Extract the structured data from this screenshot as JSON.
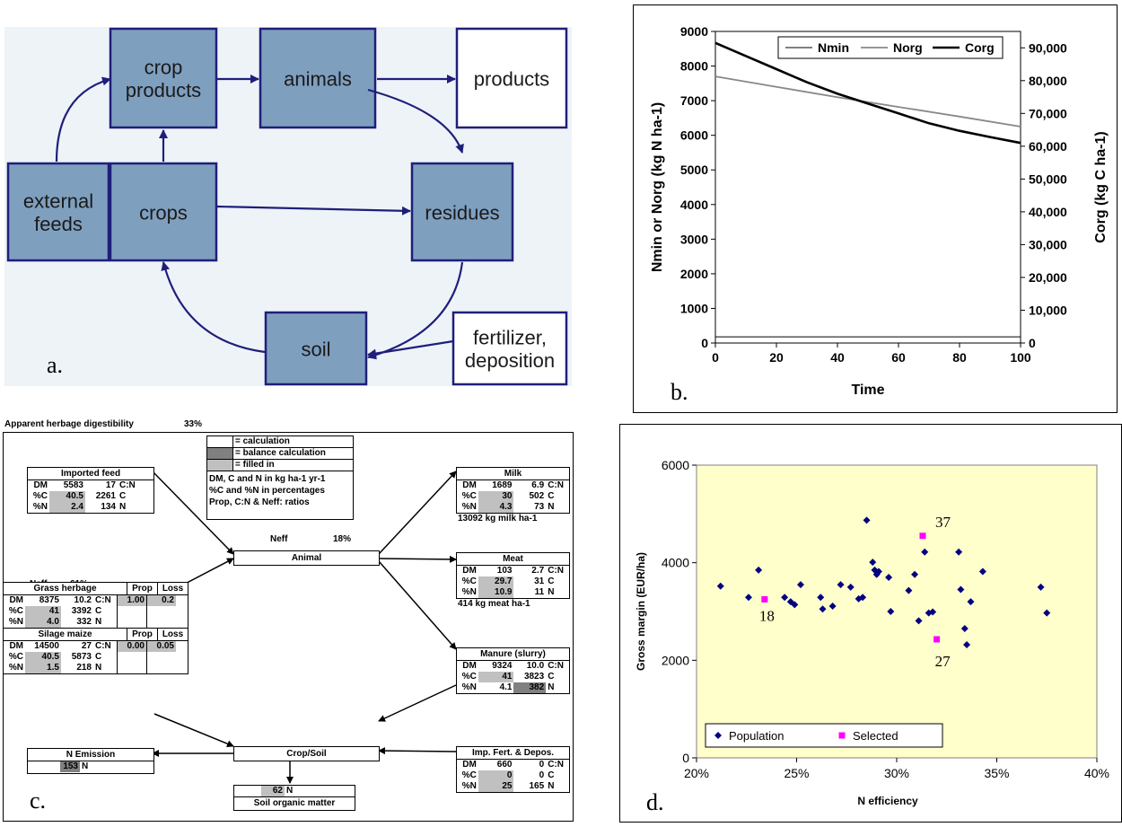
{
  "panel_a": {
    "label": "a.",
    "nodes": {
      "crop_products": [
        "crop",
        "products"
      ],
      "animals": [
        "animals"
      ],
      "products": [
        "products"
      ],
      "external_feeds": [
        "external",
        "feeds"
      ],
      "crops": [
        "crops"
      ],
      "residues": [
        "residues"
      ],
      "soil": [
        "soil"
      ],
      "fertilizer": [
        "fertilizer,",
        "deposition"
      ]
    }
  },
  "panel_b": {
    "label": "b.",
    "chart_data": {
      "type": "line",
      "xlabel": "Time",
      "ylabel_left": "Nmin or Norg (kg N ha-1)",
      "ylabel_right": "Corg (kg C ha-1)",
      "xlim": [
        0,
        100
      ],
      "ylim_left": [
        0,
        9000
      ],
      "ylim_right": [
        0,
        95000
      ],
      "x_ticks": [
        "0",
        "20",
        "40",
        "60",
        "80",
        "100"
      ],
      "y_ticks_left": [
        "0",
        "1000",
        "2000",
        "3000",
        "4000",
        "5000",
        "6000",
        "7000",
        "8000",
        "9000"
      ],
      "y_ticks_right": [
        "0",
        "10,000",
        "20,000",
        "30,000",
        "40,000",
        "50,000",
        "60,000",
        "70,000",
        "80,000",
        "90,000"
      ],
      "legend_position": "top-right",
      "series": [
        {
          "name": "Nmin",
          "axis": "left",
          "color": "#000000",
          "x": [
            0,
            20,
            40,
            60,
            80,
            100
          ],
          "y": [
            180,
            180,
            180,
            180,
            180,
            180
          ]
        },
        {
          "name": "Norg",
          "axis": "left",
          "color": "#888888",
          "x": [
            0,
            20,
            40,
            60,
            80,
            100
          ],
          "y": [
            7700,
            7400,
            7100,
            6820,
            6540,
            6250
          ]
        },
        {
          "name": "Corg",
          "axis": "right",
          "color": "#000000",
          "x": [
            0,
            10,
            20,
            30,
            40,
            50,
            60,
            70,
            80,
            90,
            100
          ],
          "y": [
            91500,
            87500,
            83500,
            79500,
            76000,
            73000,
            70000,
            67000,
            64700,
            62800,
            61000
          ]
        }
      ]
    }
  },
  "panel_c": {
    "label": "c.",
    "header_text": "Apparent herbage digestibility",
    "header_value": "33%",
    "legend": {
      "calc": "= calculation",
      "balance": "= balance calculation",
      "filled": "= filled in",
      "note1": "DM, C and N in kg ha-1 yr-1",
      "note2": "%C and %N in percentages",
      "note3": "Prop, C:N & Neff: ratios"
    },
    "imported_feed": {
      "title": "Imported feed",
      "rows": [
        [
          "DM",
          "5583",
          "17",
          "C:N"
        ],
        [
          "%C",
          "40.5",
          "2261",
          "C"
        ],
        [
          "%N",
          "2.4",
          "134",
          "N"
        ]
      ]
    },
    "milk": {
      "title": "Milk",
      "rows": [
        [
          "DM",
          "1689",
          "6.9",
          "C:N"
        ],
        [
          "%C",
          "30",
          "502",
          "C"
        ],
        [
          "%N",
          "4.3",
          "73",
          "N"
        ]
      ],
      "note": "13092 kg milk ha-1"
    },
    "meat": {
      "title": "Meat",
      "rows": [
        [
          "DM",
          "103",
          "2.7",
          "C:N"
        ],
        [
          "%C",
          "29.7",
          "31",
          "C"
        ],
        [
          "%N",
          "10.9",
          "11",
          "N"
        ]
      ],
      "note": "414 kg meat ha-1"
    },
    "manure": {
      "title": "Manure (slurry)",
      "rows": [
        [
          "DM",
          "9324",
          "10.0",
          "C:N"
        ],
        [
          "%C",
          "41",
          "3823",
          "C"
        ],
        [
          "%N",
          "4.1",
          "382",
          "N"
        ]
      ]
    },
    "imp_fert": {
      "title": "Imp. Fert. & Depos.",
      "rows": [
        [
          "DM",
          "660",
          "0",
          "C:N"
        ],
        [
          "%C",
          "0",
          "0",
          "C"
        ],
        [
          "%N",
          "25",
          "165",
          "N"
        ]
      ]
    },
    "grass": {
      "title": "Grass herbage",
      "rows": [
        [
          "DM",
          "8375",
          "10.2",
          "C:N"
        ],
        [
          "%C",
          "41",
          "3392",
          "C"
        ],
        [
          "%N",
          "4.0",
          "332",
          "N"
        ]
      ],
      "prop_label": "Prop",
      "loss_label": "Loss",
      "prop": "1.00",
      "loss": "0.2"
    },
    "maize": {
      "title": "Silage maize",
      "rows": [
        [
          "DM",
          "14500",
          "27",
          "C:N"
        ],
        [
          "%C",
          "40.5",
          "5873",
          "C"
        ],
        [
          "%N",
          "1.5",
          "218",
          "N"
        ]
      ],
      "prop_label": "Prop",
      "loss_label": "Loss",
      "prop": "0.00",
      "loss": "0.05"
    },
    "animal": "Animal",
    "crop_soil": "Crop/Soil",
    "neff_animal_label": "Neff",
    "neff_animal_value": "18%",
    "neff_crop_label": "Neff",
    "neff_crop_value": "61%",
    "n_emission": {
      "title": "N Emission",
      "value": "153",
      "unit": "N"
    },
    "som": {
      "title": "Soil organic matter",
      "value": "62",
      "unit": "N"
    }
  },
  "panel_d": {
    "label": "d.",
    "chart_data": {
      "type": "scatter",
      "xlabel": "N efficiency",
      "ylabel": "Gross margin (EUR/ha)",
      "xlim": [
        0.2,
        0.4
      ],
      "ylim": [
        0,
        6000
      ],
      "x_ticks": [
        "20%",
        "25%",
        "30%",
        "35%",
        "40%"
      ],
      "y_ticks": [
        "0",
        "2000",
        "4000",
        "6000"
      ],
      "legend_position": "bottom-left",
      "series": [
        {
          "name": "Population",
          "color": "#000080",
          "x": [
            0.212,
            0.226,
            0.231,
            0.244,
            0.247,
            0.249,
            0.252,
            0.262,
            0.263,
            0.268,
            0.272,
            0.277,
            0.281,
            0.283,
            0.285,
            0.288,
            0.289,
            0.29,
            0.291,
            0.296,
            0.297,
            0.306,
            0.309,
            0.311,
            0.314,
            0.316,
            0.318,
            0.331,
            0.332,
            0.334,
            0.335,
            0.337,
            0.343,
            0.372,
            0.375
          ],
          "y": [
            3520,
            3290,
            3850,
            3290,
            3200,
            3140,
            3550,
            3290,
            3050,
            3110,
            3550,
            3500,
            3260,
            3290,
            4870,
            4010,
            3850,
            3760,
            3820,
            3700,
            3000,
            3430,
            3760,
            2810,
            4220,
            2970,
            2990,
            4220,
            3450,
            2650,
            2320,
            3200,
            3820,
            3500,
            2970
          ]
        },
        {
          "name": "Selected",
          "color": "#ff00ff",
          "x": [
            0.234,
            0.313,
            0.32
          ],
          "y": [
            3250,
            4550,
            2430
          ],
          "labels": [
            "18",
            "37",
            "27"
          ]
        }
      ]
    }
  }
}
